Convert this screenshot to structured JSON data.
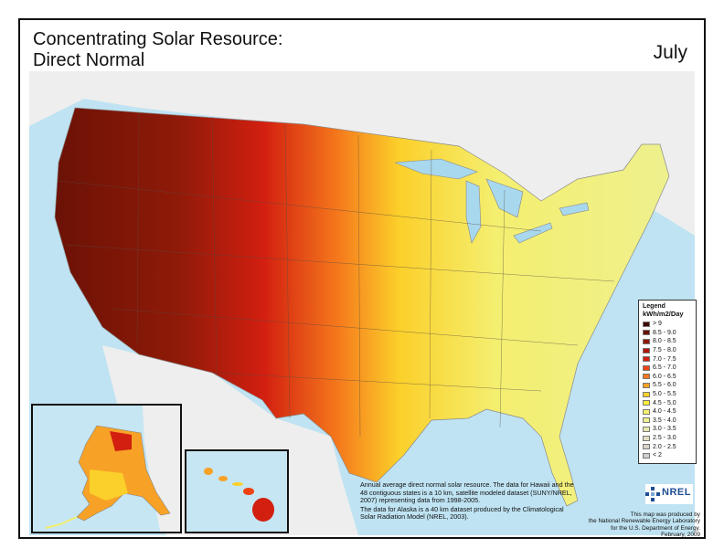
{
  "title": {
    "line1": "Concentrating Solar Resource:",
    "line2": "Direct Normal"
  },
  "month": "July",
  "legend": {
    "title": "Legend",
    "unit": "kWh/m2/Day",
    "classes": [
      {
        "label": "> 9",
        "color": "#3d0b05"
      },
      {
        "label": "8.5 - 9.0",
        "color": "#6b1206"
      },
      {
        "label": "8.0 - 8.5",
        "color": "#8f1a08"
      },
      {
        "label": "7.5 - 8.0",
        "color": "#b0180a"
      },
      {
        "label": "7.0 - 7.5",
        "color": "#d21f10"
      },
      {
        "label": "6.5 - 7.0",
        "color": "#ee4212"
      },
      {
        "label": "6.0 - 6.5",
        "color": "#f5781c"
      },
      {
        "label": "5.5 - 6.0",
        "color": "#f7a226"
      },
      {
        "label": "5.0 - 5.5",
        "color": "#fbd02a"
      },
      {
        "label": "4.5 - 5.0",
        "color": "#fcf03c"
      },
      {
        "label": "4.0 - 4.5",
        "color": "#f4ef70"
      },
      {
        "label": "3.5 - 4.0",
        "color": "#eef08e"
      },
      {
        "label": "3.0 - 3.5",
        "color": "#e9e8ae"
      },
      {
        "label": "2.5 - 3.0",
        "color": "#e5dcc0"
      },
      {
        "label": "2.0 - 2.5",
        "color": "#d9d4c8"
      },
      {
        "label": "< 2",
        "color": "#cfcfcf"
      }
    ]
  },
  "notes": {
    "data_note_1": "Annual average direct normal solar resource.  The data for Hawaii and the 48 contiguous states is a 10 km, satellite modeled dataset (SUNY/NREL, 2007) representing data from 1998-2005.",
    "data_note_2": "The data for Alaska is a 40 km dataset produced by the Climatological Solar Radiation Model (NREL, 2003).",
    "credit_1": "This map was produced by",
    "credit_2": "the National Renewable Energy Laboratory",
    "credit_3": "for the U.S. Department of Energy.",
    "credit_4": "February, 2009"
  },
  "logo": {
    "text": "NREL",
    "color": "#1f4e96"
  },
  "colors": {
    "water": "#bfe3f2",
    "land_outside": "#eeeeee",
    "great_lakes": "#a8d8ee"
  }
}
